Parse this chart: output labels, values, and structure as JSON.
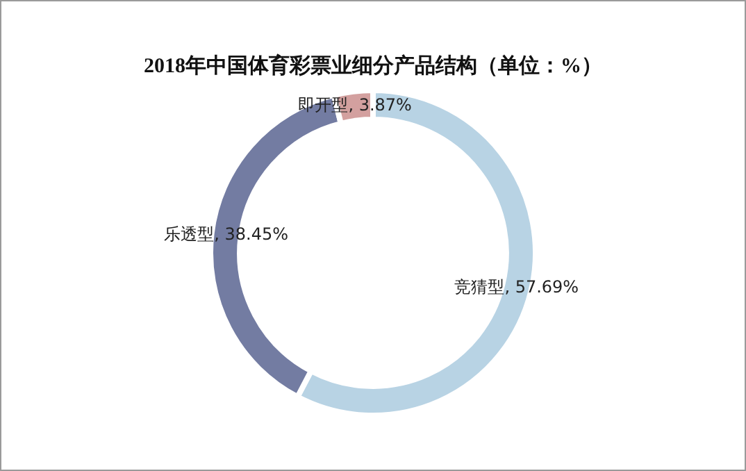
{
  "chart_data": {
    "type": "donut",
    "title": "2018年中国体育彩票业细分产品结构（单位：%）",
    "categories": [
      "竞猜型",
      "乐透型",
      "即开型"
    ],
    "values": [
      57.69,
      38.45,
      3.87
    ],
    "colors": [
      "#b8d3e4",
      "#737ca2",
      "#d3a09f"
    ],
    "value_labels": [
      "57.69%",
      "38.45%",
      "3.87%"
    ]
  }
}
